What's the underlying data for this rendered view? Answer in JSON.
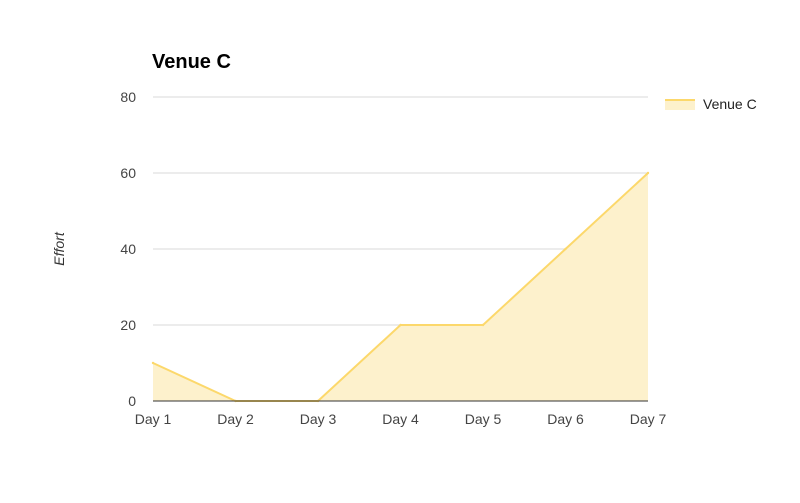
{
  "chart_data": {
    "type": "area",
    "title": "Venue C",
    "xlabel": "",
    "ylabel": "Effort",
    "categories": [
      "Day 1",
      "Day 2",
      "Day 3",
      "Day 4",
      "Day 5",
      "Day 6",
      "Day 7"
    ],
    "series": [
      {
        "name": "Venue C",
        "values": [
          10,
          0,
          0,
          20,
          20,
          40,
          60
        ]
      }
    ],
    "ylim": [
      0,
      80
    ],
    "yticks": [
      0,
      20,
      40,
      60,
      80
    ],
    "grid": true,
    "legend_position": "right",
    "colors": {
      "line": "#fcd86b",
      "fill": "#fdf1cc",
      "grid": "#d9d9d9",
      "baseline": "#333333"
    }
  }
}
